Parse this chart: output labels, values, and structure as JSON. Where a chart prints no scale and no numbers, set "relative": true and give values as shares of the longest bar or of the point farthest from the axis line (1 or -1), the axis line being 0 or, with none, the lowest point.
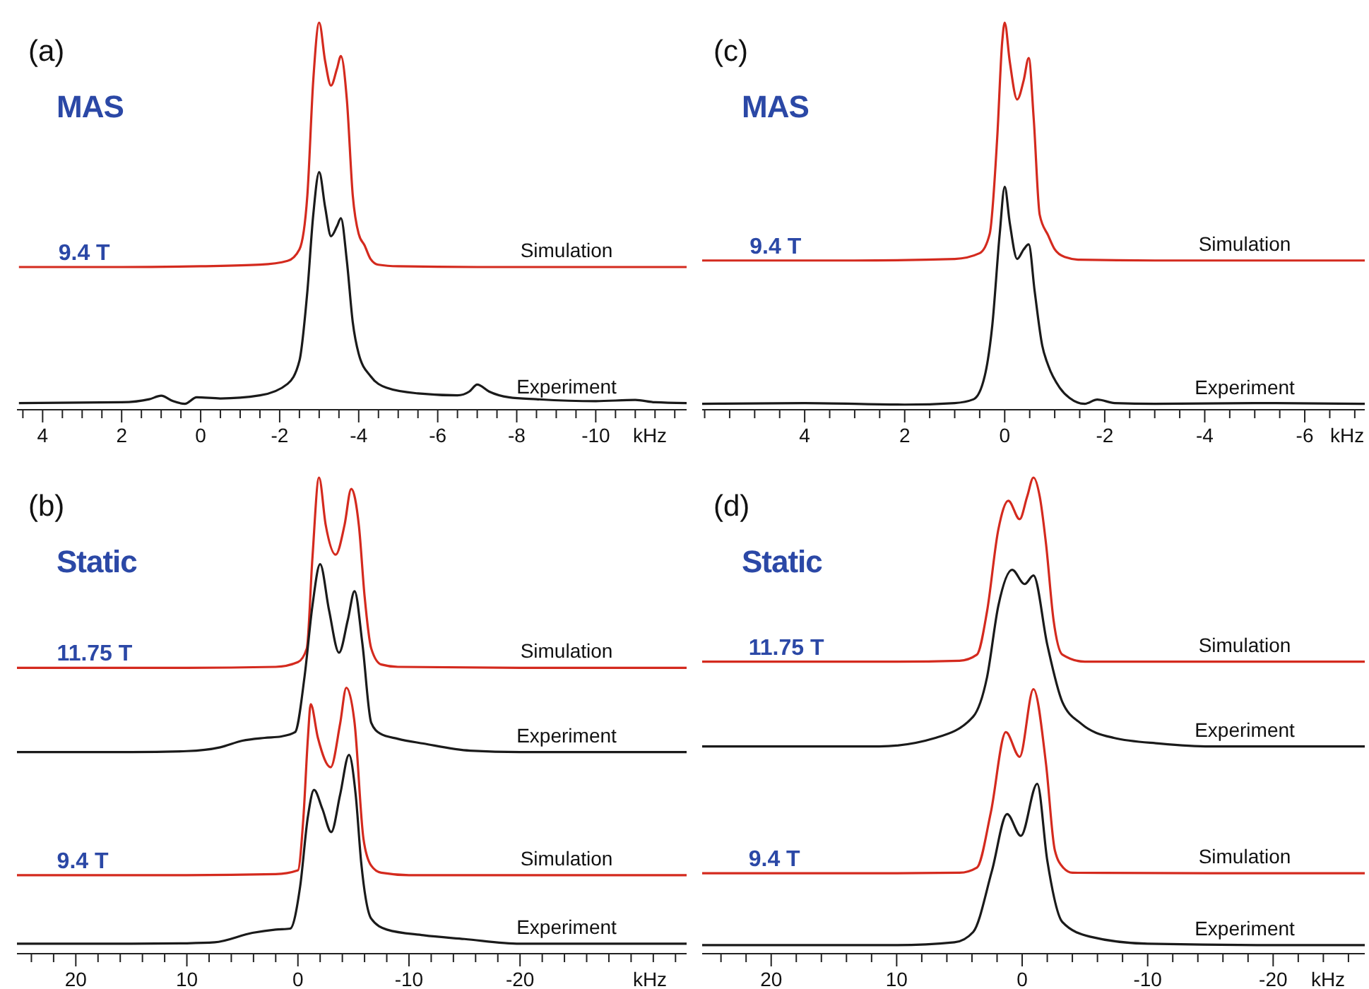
{
  "chart_data": [
    {
      "type": "line",
      "title": "(a)",
      "subtitle": "MAS",
      "xlabel": "kHz",
      "relative": true,
      "grid": false,
      "xlim": [
        4.65,
        -12.3
      ],
      "xticks": [
        {
          "value": 4.5,
          "label": null
        },
        4,
        {
          "value": 3.5,
          "label": null
        },
        {
          "value": 3,
          "label": null
        },
        {
          "value": 2.5,
          "label": null
        },
        2,
        {
          "value": 1.5,
          "label": null
        },
        {
          "value": 1,
          "label": null
        },
        {
          "value": 0.5,
          "label": null
        },
        0,
        {
          "value": -0.5,
          "label": null
        },
        {
          "value": -1,
          "label": null
        },
        {
          "value": -1.5,
          "label": null
        },
        -2,
        {
          "value": -2.5,
          "label": null
        },
        {
          "value": -3,
          "label": null
        },
        {
          "value": -3.5,
          "label": null
        },
        -4,
        {
          "value": -4.5,
          "label": null
        },
        {
          "value": -5,
          "label": null
        },
        {
          "value": -5.5,
          "label": null
        },
        -6,
        {
          "value": -6.5,
          "label": null
        },
        {
          "value": -7,
          "label": null
        },
        {
          "value": -7.5,
          "label": null
        },
        -8,
        {
          "value": -8.5,
          "label": null
        },
        {
          "value": -9,
          "label": null
        },
        {
          "value": -9.5,
          "label": null
        },
        -10,
        {
          "value": -10.5,
          "label": null
        },
        {
          "value": -11,
          "label": null
        },
        {
          "value": -11.5,
          "label": null
        },
        {
          "value": -12,
          "label": null
        }
      ],
      "annotations": [
        {
          "text": "9.4 T",
          "x": 3.6,
          "y": 0.364
        }
      ],
      "series": [
        {
          "name": "Simulation",
          "color": "#d42a1e",
          "x": [
            4.6,
            2,
            0,
            -1.5,
            -2.2,
            -2.5,
            -2.7,
            -2.85,
            -3.0,
            -3.15,
            -3.3,
            -3.45,
            -3.55,
            -3.7,
            -3.85,
            -4.0,
            -4.15,
            -4.3,
            -4.5,
            -5,
            -7,
            -10,
            -12.3
          ],
          "values": [
            0.364,
            0.364,
            0.366,
            0.37,
            0.38,
            0.41,
            0.55,
            0.85,
            1.0,
            0.9,
            0.836,
            0.88,
            0.913,
            0.8,
            0.55,
            0.45,
            0.42,
            0.385,
            0.37,
            0.366,
            0.364,
            0.364,
            0.364
          ]
        },
        {
          "name": "Experiment",
          "color": "#1a1a1a",
          "x": [
            4.6,
            2,
            1.3,
            1.0,
            0.7,
            0.4,
            0.1,
            -0.5,
            -1.5,
            -2.2,
            -2.5,
            -2.7,
            -2.85,
            -3.0,
            -3.15,
            -3.3,
            -3.45,
            -3.55,
            -3.7,
            -3.85,
            -4.0,
            -4.3,
            -4.7,
            -5.5,
            -6.5,
            -6.8,
            -7.0,
            -7.3,
            -7.8,
            -8.5,
            -10,
            -11,
            -11.5,
            -12.3
          ],
          "values": [
            0.01,
            0.012,
            0.02,
            0.029,
            0.015,
            0.008,
            0.025,
            0.022,
            0.03,
            0.06,
            0.12,
            0.3,
            0.5,
            0.611,
            0.52,
            0.444,
            0.47,
            0.491,
            0.38,
            0.22,
            0.138,
            0.08,
            0.05,
            0.035,
            0.03,
            0.04,
            0.058,
            0.04,
            0.025,
            0.02,
            0.015,
            0.018,
            0.012,
            0.01
          ]
        }
      ]
    },
    {
      "type": "line",
      "title": "(c)",
      "subtitle": "MAS",
      "xlabel": "kHz",
      "relative": true,
      "grid": false,
      "xlim": [
        6.05,
        -7.2
      ],
      "xticks": [
        {
          "value": 6,
          "label": null
        },
        {
          "value": 5.5,
          "label": null
        },
        {
          "value": 5,
          "label": null
        },
        {
          "value": 4.5,
          "label": null
        },
        4,
        {
          "value": 3.5,
          "label": null
        },
        {
          "value": 3,
          "label": null
        },
        {
          "value": 2.5,
          "label": null
        },
        2,
        {
          "value": 1.5,
          "label": null
        },
        {
          "value": 1,
          "label": null
        },
        {
          "value": 0.5,
          "label": null
        },
        0,
        {
          "value": -0.5,
          "label": null
        },
        {
          "value": -1,
          "label": null
        },
        {
          "value": -1.5,
          "label": null
        },
        -2,
        {
          "value": -2.5,
          "label": null
        },
        {
          "value": -3,
          "label": null
        },
        {
          "value": -3.5,
          "label": null
        },
        -4,
        {
          "value": -4.5,
          "label": null
        },
        {
          "value": -5,
          "label": null
        },
        {
          "value": -5.5,
          "label": null
        },
        -6,
        {
          "value": -6.5,
          "label": null
        },
        {
          "value": -7,
          "label": null
        }
      ],
      "annotations": [
        {
          "text": "9.4 T",
          "x": 5.1,
          "y": 0.381
        }
      ],
      "series": [
        {
          "name": "Simulation",
          "color": "#d42a1e",
          "x": [
            6.05,
            3,
            1,
            0.5,
            0.3,
            0.15,
            0.05,
            0,
            -0.1,
            -0.25,
            -0.38,
            -0.48,
            -0.58,
            -0.7,
            -0.87,
            -1.0,
            -1.2,
            -1.5,
            -3,
            -7.2
          ],
          "values": [
            0.381,
            0.381,
            0.385,
            0.4,
            0.45,
            0.7,
            0.95,
            1.0,
            0.9,
            0.8,
            0.85,
            0.908,
            0.75,
            0.5,
            0.446,
            0.41,
            0.39,
            0.383,
            0.381,
            0.381
          ]
        },
        {
          "name": "Experiment",
          "color": "#1a1a1a",
          "x": [
            6.05,
            4,
            2,
            1,
            0.62,
            0.4,
            0.25,
            0.1,
            0,
            -0.1,
            -0.25,
            -0.38,
            -0.48,
            -0.6,
            -0.75,
            -0.87,
            -1.1,
            -1.3,
            -1.6,
            -1.85,
            -2.2,
            -3,
            -5,
            -7.2
          ],
          "values": [
            0.008,
            0.01,
            0.006,
            0.01,
            0.02,
            0.08,
            0.21,
            0.45,
            0.573,
            0.48,
            0.385,
            0.41,
            0.423,
            0.3,
            0.16,
            0.108,
            0.05,
            0.023,
            0.008,
            0.019,
            0.01,
            0.008,
            0.01,
            0.008
          ]
        }
      ]
    },
    {
      "type": "line",
      "title": "(b)",
      "subtitle": "Static",
      "xlabel": "kHz",
      "relative": true,
      "grid": false,
      "xlim": [
        25.3,
        -35
      ],
      "xticks": [
        {
          "value": 24,
          "label": null
        },
        {
          "value": 22,
          "label": null
        },
        20,
        {
          "value": 18,
          "label": null
        },
        {
          "value": 16,
          "label": null
        },
        {
          "value": 14,
          "label": null
        },
        {
          "value": 12,
          "label": null
        },
        10,
        {
          "value": 8,
          "label": null
        },
        {
          "value": 6,
          "label": null
        },
        {
          "value": 4,
          "label": null
        },
        {
          "value": 2,
          "label": null
        },
        0,
        {
          "value": -2,
          "label": null
        },
        {
          "value": -4,
          "label": null
        },
        {
          "value": -6,
          "label": null
        },
        {
          "value": -8,
          "label": null
        },
        -10,
        {
          "value": -12,
          "label": null
        },
        {
          "value": -14,
          "label": null
        },
        {
          "value": -16,
          "label": null
        },
        {
          "value": -18,
          "label": null
        },
        -20,
        {
          "value": -22,
          "label": null
        },
        {
          "value": -24,
          "label": null
        },
        {
          "value": -26,
          "label": null
        },
        {
          "value": -28,
          "label": null
        },
        {
          "value": -30,
          "label": null
        },
        {
          "value": -32,
          "label": null
        },
        {
          "value": -34,
          "label": null
        }
      ],
      "annotations": [
        {
          "text": "11.75 T",
          "x": 21.7,
          "y": 0.598
        },
        {
          "text": "9.4 T",
          "x": 21.7,
          "y": 0.16
        }
      ],
      "series": [
        {
          "name": "Simulation",
          "color": "#d42a1e",
          "x": [
            25.3,
            10,
            2,
            0,
            -0.8,
            -1.3,
            -1.9,
            -2.5,
            -3.4,
            -4.2,
            -4.8,
            -5.5,
            -6.0,
            -6.6,
            -7.5,
            -9,
            -20,
            -35
          ],
          "values": [
            0.598,
            0.598,
            0.6,
            0.61,
            0.639,
            0.828,
            1.0,
            0.9,
            0.837,
            0.9,
            0.976,
            0.896,
            0.75,
            0.639,
            0.605,
            0.6,
            0.598,
            0.598
          ]
        },
        {
          "name": "Experiment",
          "color": "#1a1a1a",
          "x": [
            25.3,
            15,
            10,
            7,
            5,
            3,
            1.5,
            0.26,
            -0.6,
            -1.3,
            -2.0,
            -2.8,
            -3.7,
            -4.5,
            -5.1,
            -5.8,
            -6.6,
            -7.4,
            -9,
            -11.3,
            -15.5,
            -20,
            -25,
            -35
          ],
          "values": [
            0.42,
            0.42,
            0.422,
            0.43,
            0.444,
            0.45,
            0.453,
            0.462,
            0.58,
            0.728,
            0.817,
            0.72,
            0.63,
            0.7,
            0.76,
            0.65,
            0.482,
            0.459,
            0.448,
            0.438,
            0.423,
            0.42,
            0.42,
            0.42
          ]
        },
        {
          "name": "Simulation",
          "color": "#d42a1e",
          "x": [
            25.3,
            10,
            2,
            0,
            -0.5,
            -0.9,
            -1.15,
            -1.8,
            -2.95,
            -3.8,
            -4.36,
            -5.1,
            -5.9,
            -6.6,
            -7.5,
            -10,
            -20,
            -35
          ],
          "values": [
            0.16,
            0.16,
            0.162,
            0.17,
            0.284,
            0.45,
            0.521,
            0.45,
            0.388,
            0.48,
            0.556,
            0.482,
            0.237,
            0.18,
            0.165,
            0.16,
            0.16,
            0.16
          ]
        },
        {
          "name": "Experiment",
          "color": "#1a1a1a",
          "x": [
            25.3,
            15,
            10,
            7.5,
            4.1,
            2,
            0.7,
            -0.2,
            -0.9,
            -1.45,
            -2.2,
            -3.0,
            -3.8,
            -4.6,
            -5.2,
            -5.7,
            -6.6,
            -8,
            -11.3,
            -15,
            -20,
            -25,
            -35
          ],
          "values": [
            0.015,
            0.015,
            0.016,
            0.018,
            0.038,
            0.045,
            0.047,
            0.136,
            0.284,
            0.34,
            0.3,
            0.251,
            0.33,
            0.414,
            0.33,
            0.186,
            0.068,
            0.045,
            0.033,
            0.025,
            0.015,
            0.015,
            0.015
          ]
        }
      ]
    },
    {
      "type": "line",
      "title": "(d)",
      "subtitle": "Static",
      "xlabel": "kHz",
      "relative": true,
      "grid": false,
      "xlim": [
        25.5,
        -27.3
      ],
      "xticks": [
        {
          "value": 24,
          "label": null
        },
        {
          "value": 22,
          "label": null
        },
        20,
        {
          "value": 18,
          "label": null
        },
        {
          "value": 16,
          "label": null
        },
        {
          "value": 14,
          "label": null
        },
        {
          "value": 12,
          "label": null
        },
        10,
        {
          "value": 8,
          "label": null
        },
        {
          "value": 6,
          "label": null
        },
        {
          "value": 4,
          "label": null
        },
        {
          "value": 2,
          "label": null
        },
        0,
        {
          "value": -2,
          "label": null
        },
        {
          "value": -4,
          "label": null
        },
        {
          "value": -6,
          "label": null
        },
        {
          "value": -8,
          "label": null
        },
        -10,
        {
          "value": -12,
          "label": null
        },
        {
          "value": -14,
          "label": null
        },
        {
          "value": -16,
          "label": null
        },
        {
          "value": -18,
          "label": null
        },
        -20,
        {
          "value": -22,
          "label": null
        },
        {
          "value": -24,
          "label": null
        },
        {
          "value": -26,
          "label": null
        }
      ],
      "annotations": [
        {
          "text": "11.75 T",
          "x": 21.8,
          "y": 0.611
        },
        {
          "text": "9.4 T",
          "x": 21.8,
          "y": 0.164
        }
      ],
      "series": [
        {
          "name": "Simulation",
          "color": "#d42a1e",
          "x": [
            25.5,
            10,
            5,
            3.6,
            2.8,
            1.9,
            1.1,
            0.2,
            -0.4,
            -0.9,
            -1.4,
            -1.9,
            -2.5,
            -3.2,
            -5,
            -15,
            -27.3
          ],
          "values": [
            0.611,
            0.611,
            0.613,
            0.626,
            0.717,
            0.89,
            0.951,
            0.912,
            0.96,
            1.0,
            0.96,
            0.86,
            0.699,
            0.626,
            0.611,
            0.611,
            0.611
          ]
        },
        {
          "name": "Experiment",
          "color": "#1a1a1a",
          "x": [
            25.5,
            15,
            11.4,
            6.9,
            3.9,
            2.8,
            1.9,
            0.8,
            -0.2,
            -0.9,
            -2.0,
            -3.2,
            -4.7,
            -7.3,
            -11,
            -15,
            -20,
            -27.3
          ],
          "values": [
            0.432,
            0.432,
            0.432,
            0.45,
            0.495,
            0.578,
            0.729,
            0.805,
            0.775,
            0.793,
            0.647,
            0.526,
            0.48,
            0.45,
            0.438,
            0.432,
            0.432,
            0.432
          ]
        },
        {
          "name": "Simulation",
          "color": "#d42a1e",
          "x": [
            25.5,
            10,
            5,
            3.6,
            2.5,
            1.3,
            0.2,
            -0.9,
            -1.9,
            -2.6,
            -3.3,
            -4,
            -15,
            -27.3
          ],
          "values": [
            0.164,
            0.164,
            0.165,
            0.176,
            0.292,
            0.462,
            0.41,
            0.553,
            0.395,
            0.213,
            0.175,
            0.165,
            0.164,
            0.164
          ]
        },
        {
          "name": "Experiment",
          "color": "#1a1a1a",
          "x": [
            25.5,
            10,
            5.4,
            3.9,
            2.4,
            1.2,
            0.1,
            -1.2,
            -2.0,
            -3.2,
            -5.4,
            -10,
            -20,
            -27.3
          ],
          "values": [
            0.012,
            0.012,
            0.018,
            0.04,
            0.17,
            0.289,
            0.243,
            0.353,
            0.191,
            0.061,
            0.03,
            0.015,
            0.012,
            0.012
          ]
        }
      ]
    }
  ]
}
